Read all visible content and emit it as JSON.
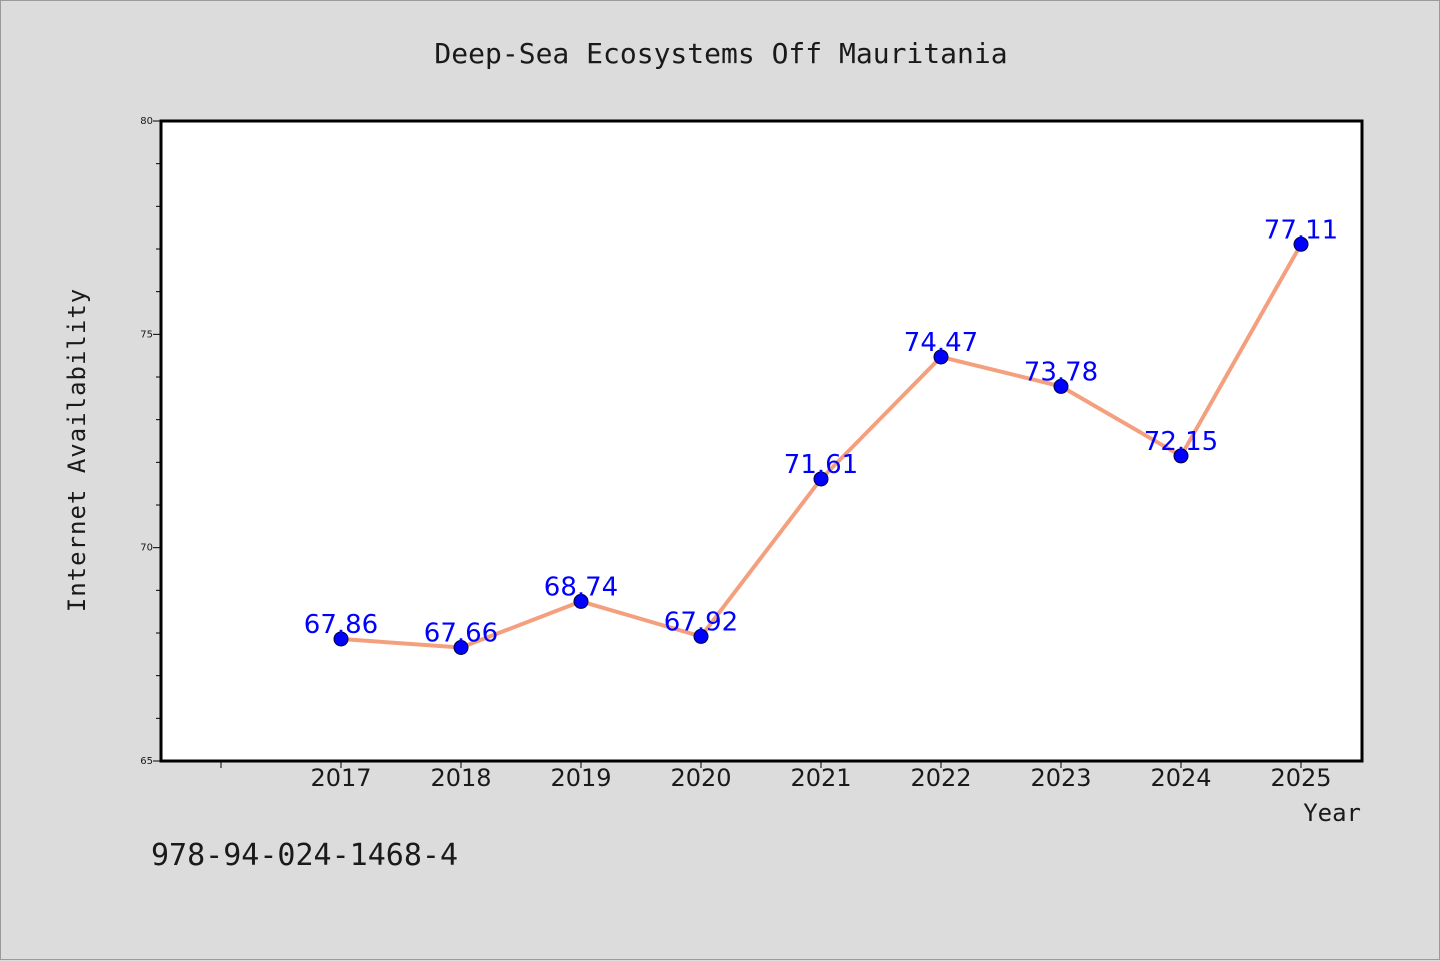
{
  "isbn_text": "978-94-024-1468-4",
  "colors": {
    "background": "#dcdcdc",
    "plot_background": "#ffffff",
    "line": "#f4a07e",
    "marker": "#0000ff",
    "data_label": "#0000ff"
  },
  "chart_data": {
    "type": "line",
    "title": "Deep-Sea Ecosystems Off Mauritania",
    "xlabel": "Year",
    "ylabel": "Internet Availability",
    "x": [
      "2017",
      "2018",
      "2019",
      "2020",
      "2021",
      "2022",
      "2023",
      "2024",
      "2025"
    ],
    "series": [
      {
        "values": [
          67.86,
          67.66,
          68.74,
          67.92,
          71.61,
          74.47,
          73.78,
          72.15,
          77.11
        ],
        "labels": [
          "67.86",
          "67.66",
          "68.74",
          "67.92",
          "71.61",
          "74.47",
          "73.78",
          "72.15",
          "77.11"
        ]
      }
    ],
    "ylim": [
      65,
      80
    ],
    "yticks_major": [
      "65",
      "70",
      "75",
      "80"
    ],
    "grid": false,
    "legend": "none"
  }
}
